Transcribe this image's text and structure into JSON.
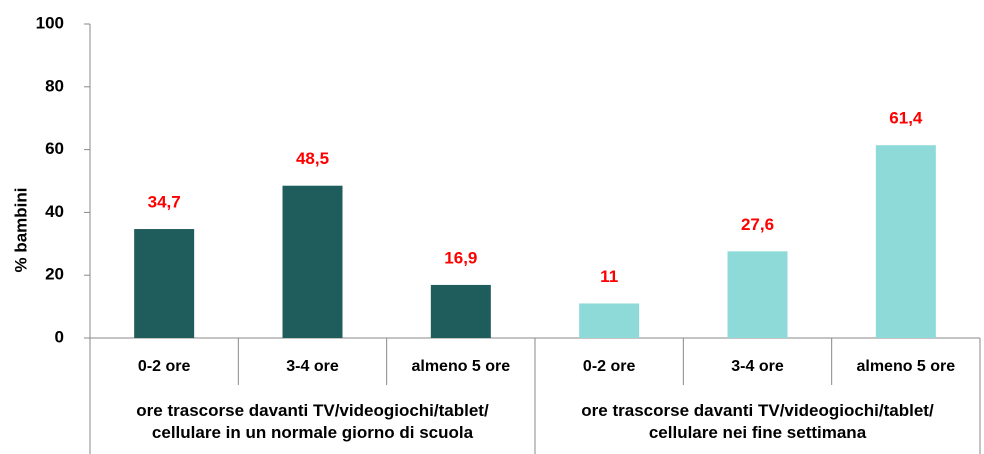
{
  "chart_data": {
    "type": "bar",
    "y_label": "% bambini",
    "categories": [
      "0-2 ore",
      "3-4 ore",
      "almeno 5 ore",
      "0-2 ore",
      "3-4 ore",
      "almeno 5 ore"
    ],
    "values": [
      34.7,
      48.5,
      16.9,
      11,
      27.6,
      61.4
    ],
    "value_labels": [
      "34,7",
      "48,5",
      "16,9",
      "11",
      "27,6",
      "61,4"
    ],
    "colors": [
      "#1f5c5c",
      "#1f5c5c",
      "#1f5c5c",
      "#8edad8",
      "#8edad8",
      "#8edad8"
    ],
    "value_label_color": "#ff0000",
    "groups": [
      "ore trascorse davanti TV/videogiochi/tablet/\ncellulare in un normale giorno di scuola",
      "ore trascorse davanti TV/videogiochi/tablet/\ncellulare nei fine settimana"
    ],
    "ylim": [
      0,
      100
    ],
    "yticks": [
      0,
      20,
      40,
      60,
      80,
      100
    ],
    "grid": false
  }
}
